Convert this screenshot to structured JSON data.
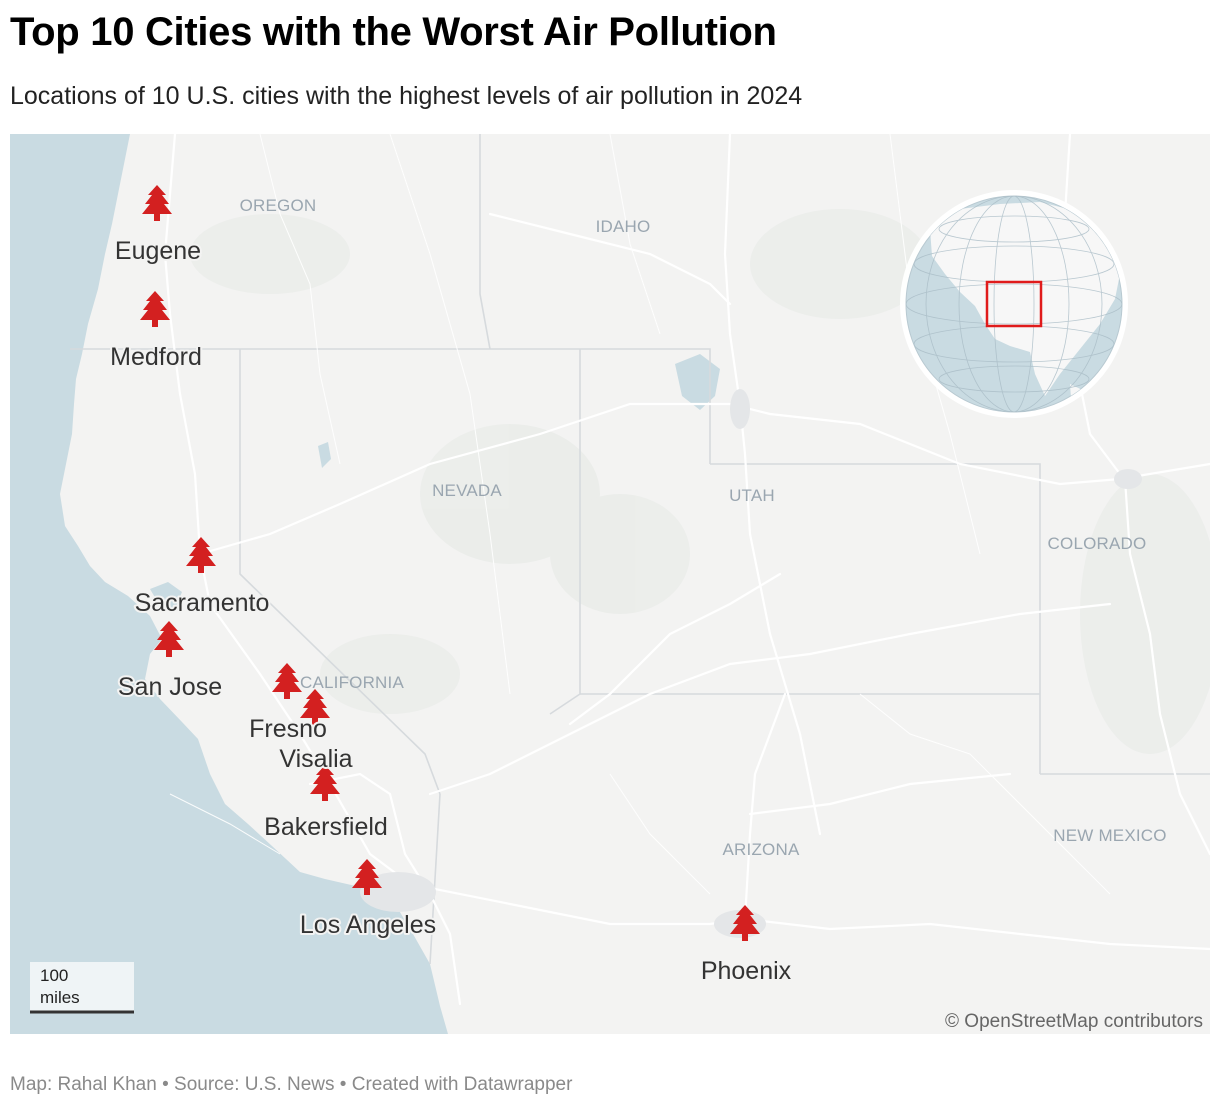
{
  "title": "Top 10 Cities with the Worst Air Pollution",
  "subtitle": "Locations of 10 U.S. cities with the highest levels of air pollution in 2024",
  "footer": "Map: Rahal Khan • Source: U.S. News • Created with Datawrapper",
  "attribution": "© OpenStreetMap contributors",
  "scale_bar": {
    "value": "100",
    "unit": "miles"
  },
  "marker_icon": "pine-tree-icon",
  "colors": {
    "marker": "#d32020",
    "land": "#f3f3f2",
    "water": "#c9dbe2",
    "roads": "#ffffff",
    "locator_box": "#e01b1b"
  },
  "states": [
    "OREGON",
    "IDAHO",
    "NEVADA",
    "UTAH",
    "COLORADO",
    "CALIFORNIA",
    "ARIZONA",
    "NEW MEXICO"
  ],
  "cities": [
    "Eugene",
    "Medford",
    "Sacramento",
    "San Jose",
    "Fresno",
    "Visalia",
    "Bakersfield",
    "Los Angeles",
    "Phoenix"
  ],
  "locator": {
    "region": "Western United States"
  }
}
